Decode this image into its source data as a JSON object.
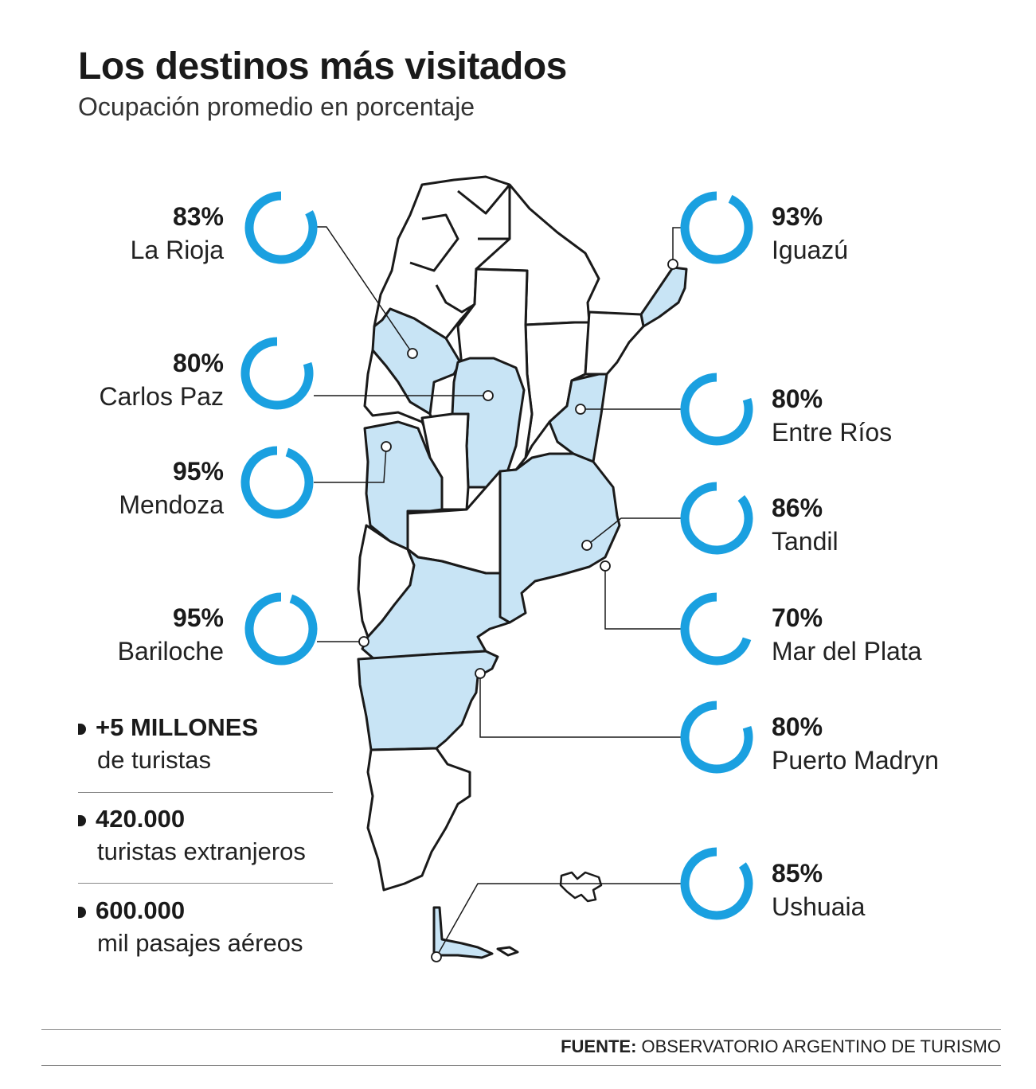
{
  "title": "Los destinos más visitados",
  "subtitle": "Ocupación promedio en porcentaje",
  "accent_color": "#1aa0e0",
  "province_fill": "#c8e4f5",
  "destinations": [
    {
      "name": "La Rioja",
      "percent": 83,
      "label": "83%"
    },
    {
      "name": "Carlos Paz",
      "percent": 80,
      "label": "80%"
    },
    {
      "name": "Mendoza",
      "percent": 95,
      "label": "95%"
    },
    {
      "name": "Bariloche",
      "percent": 95,
      "label": "95%"
    },
    {
      "name": "Iguazú",
      "percent": 93,
      "label": "93%"
    },
    {
      "name": "Entre Ríos",
      "percent": 80,
      "label": "80%"
    },
    {
      "name": "Tandil",
      "percent": 86,
      "label": "86%"
    },
    {
      "name": "Mar del Plata",
      "percent": 70,
      "label": "70%"
    },
    {
      "name": "Puerto Madryn",
      "percent": 80,
      "label": "80%"
    },
    {
      "name": "Ushuaia",
      "percent": 85,
      "label": "85%"
    }
  ],
  "stats": [
    {
      "value": "+5 MILLONES",
      "caption": "de turistas"
    },
    {
      "value": "420.000",
      "caption": "turistas extranjeros"
    },
    {
      "value": "600.000",
      "caption": "mil pasajes aéreos"
    }
  ],
  "source": {
    "label": "FUENTE:",
    "text": "OBSERVATORIO ARGENTINO DE TURISMO"
  }
}
